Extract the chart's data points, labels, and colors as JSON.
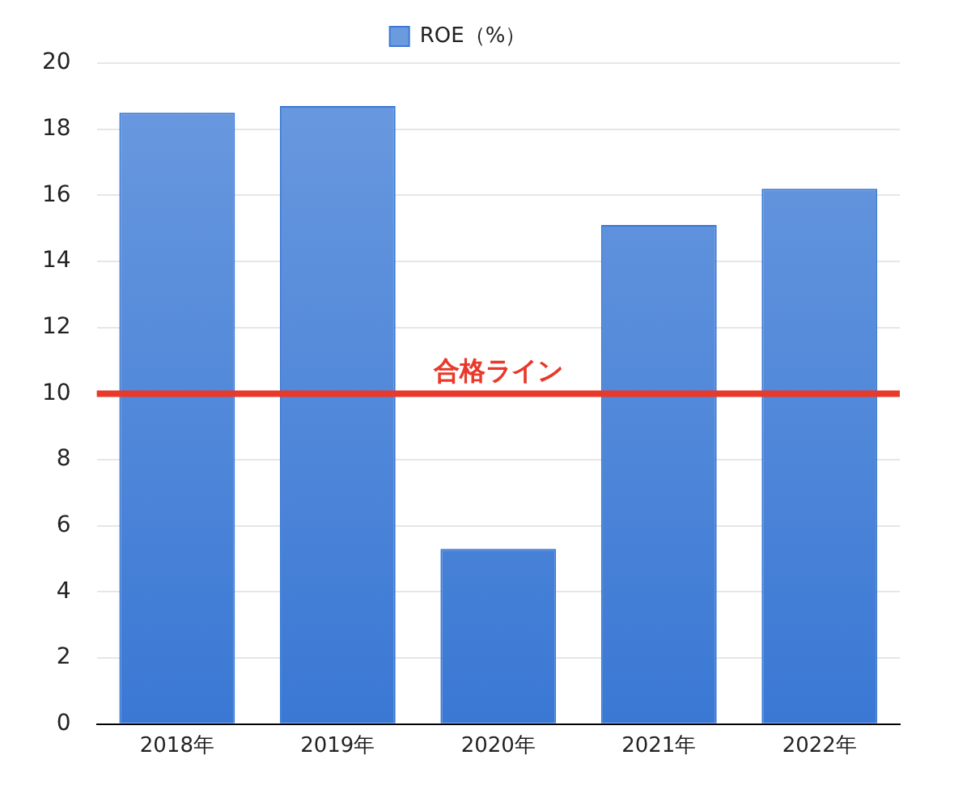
{
  "chart_data": {
    "type": "bar",
    "categories": [
      "2018年",
      "2019年",
      "2020年",
      "2021年",
      "2022年"
    ],
    "series": [
      {
        "name": "ROE（%）",
        "color": "#3a78d4",
        "values": [
          18.5,
          18.7,
          5.3,
          15.1,
          16.2
        ]
      }
    ],
    "ylim": [
      0,
      20
    ],
    "yticks": [
      0,
      2,
      4,
      6,
      8,
      10,
      12,
      14,
      16,
      18,
      20
    ],
    "grid": "y",
    "legend": "top",
    "ref_lines": [
      {
        "axis": "y",
        "value": 10,
        "label": "合格ライン",
        "color": "#e8392b"
      }
    ]
  }
}
